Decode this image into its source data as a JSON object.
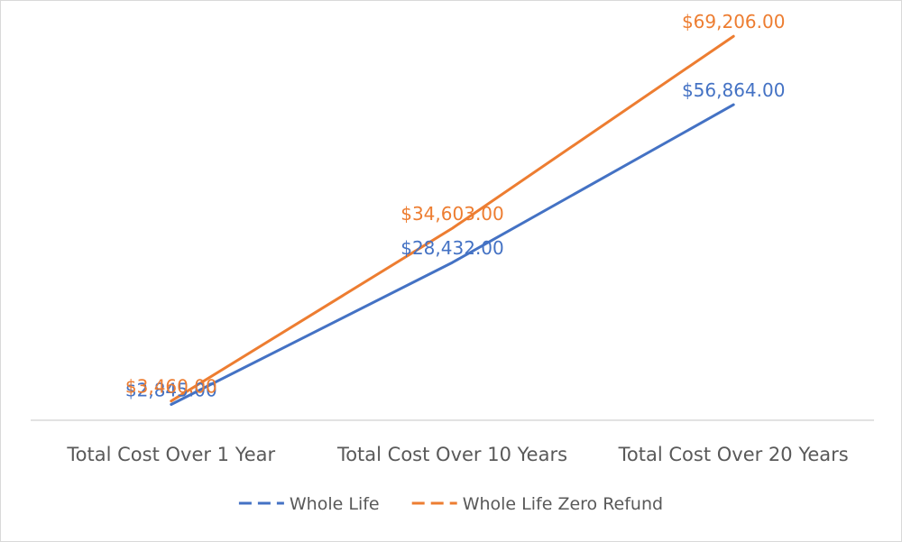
{
  "chart_data": {
    "type": "line",
    "categories": [
      "Total Cost Over 1 Year",
      "Total Cost Over 10 Years",
      "Total Cost Over 20 Years"
    ],
    "series": [
      {
        "name": "Whole Life",
        "color": "#4472c4",
        "values": [
          2845,
          28432,
          56864
        ],
        "labels": [
          "$2,845.00",
          "$28,432.00",
          "$56,864.00"
        ]
      },
      {
        "name": "Whole Life Zero Refund",
        "color": "#ed7d31",
        "values": [
          3460,
          34603,
          69206
        ],
        "labels": [
          "$3,460.00",
          "$34,603.00",
          "$69,206.00"
        ]
      }
    ],
    "ylim": [
      0,
      72000
    ],
    "grid": false,
    "legend_position": "bottom"
  }
}
